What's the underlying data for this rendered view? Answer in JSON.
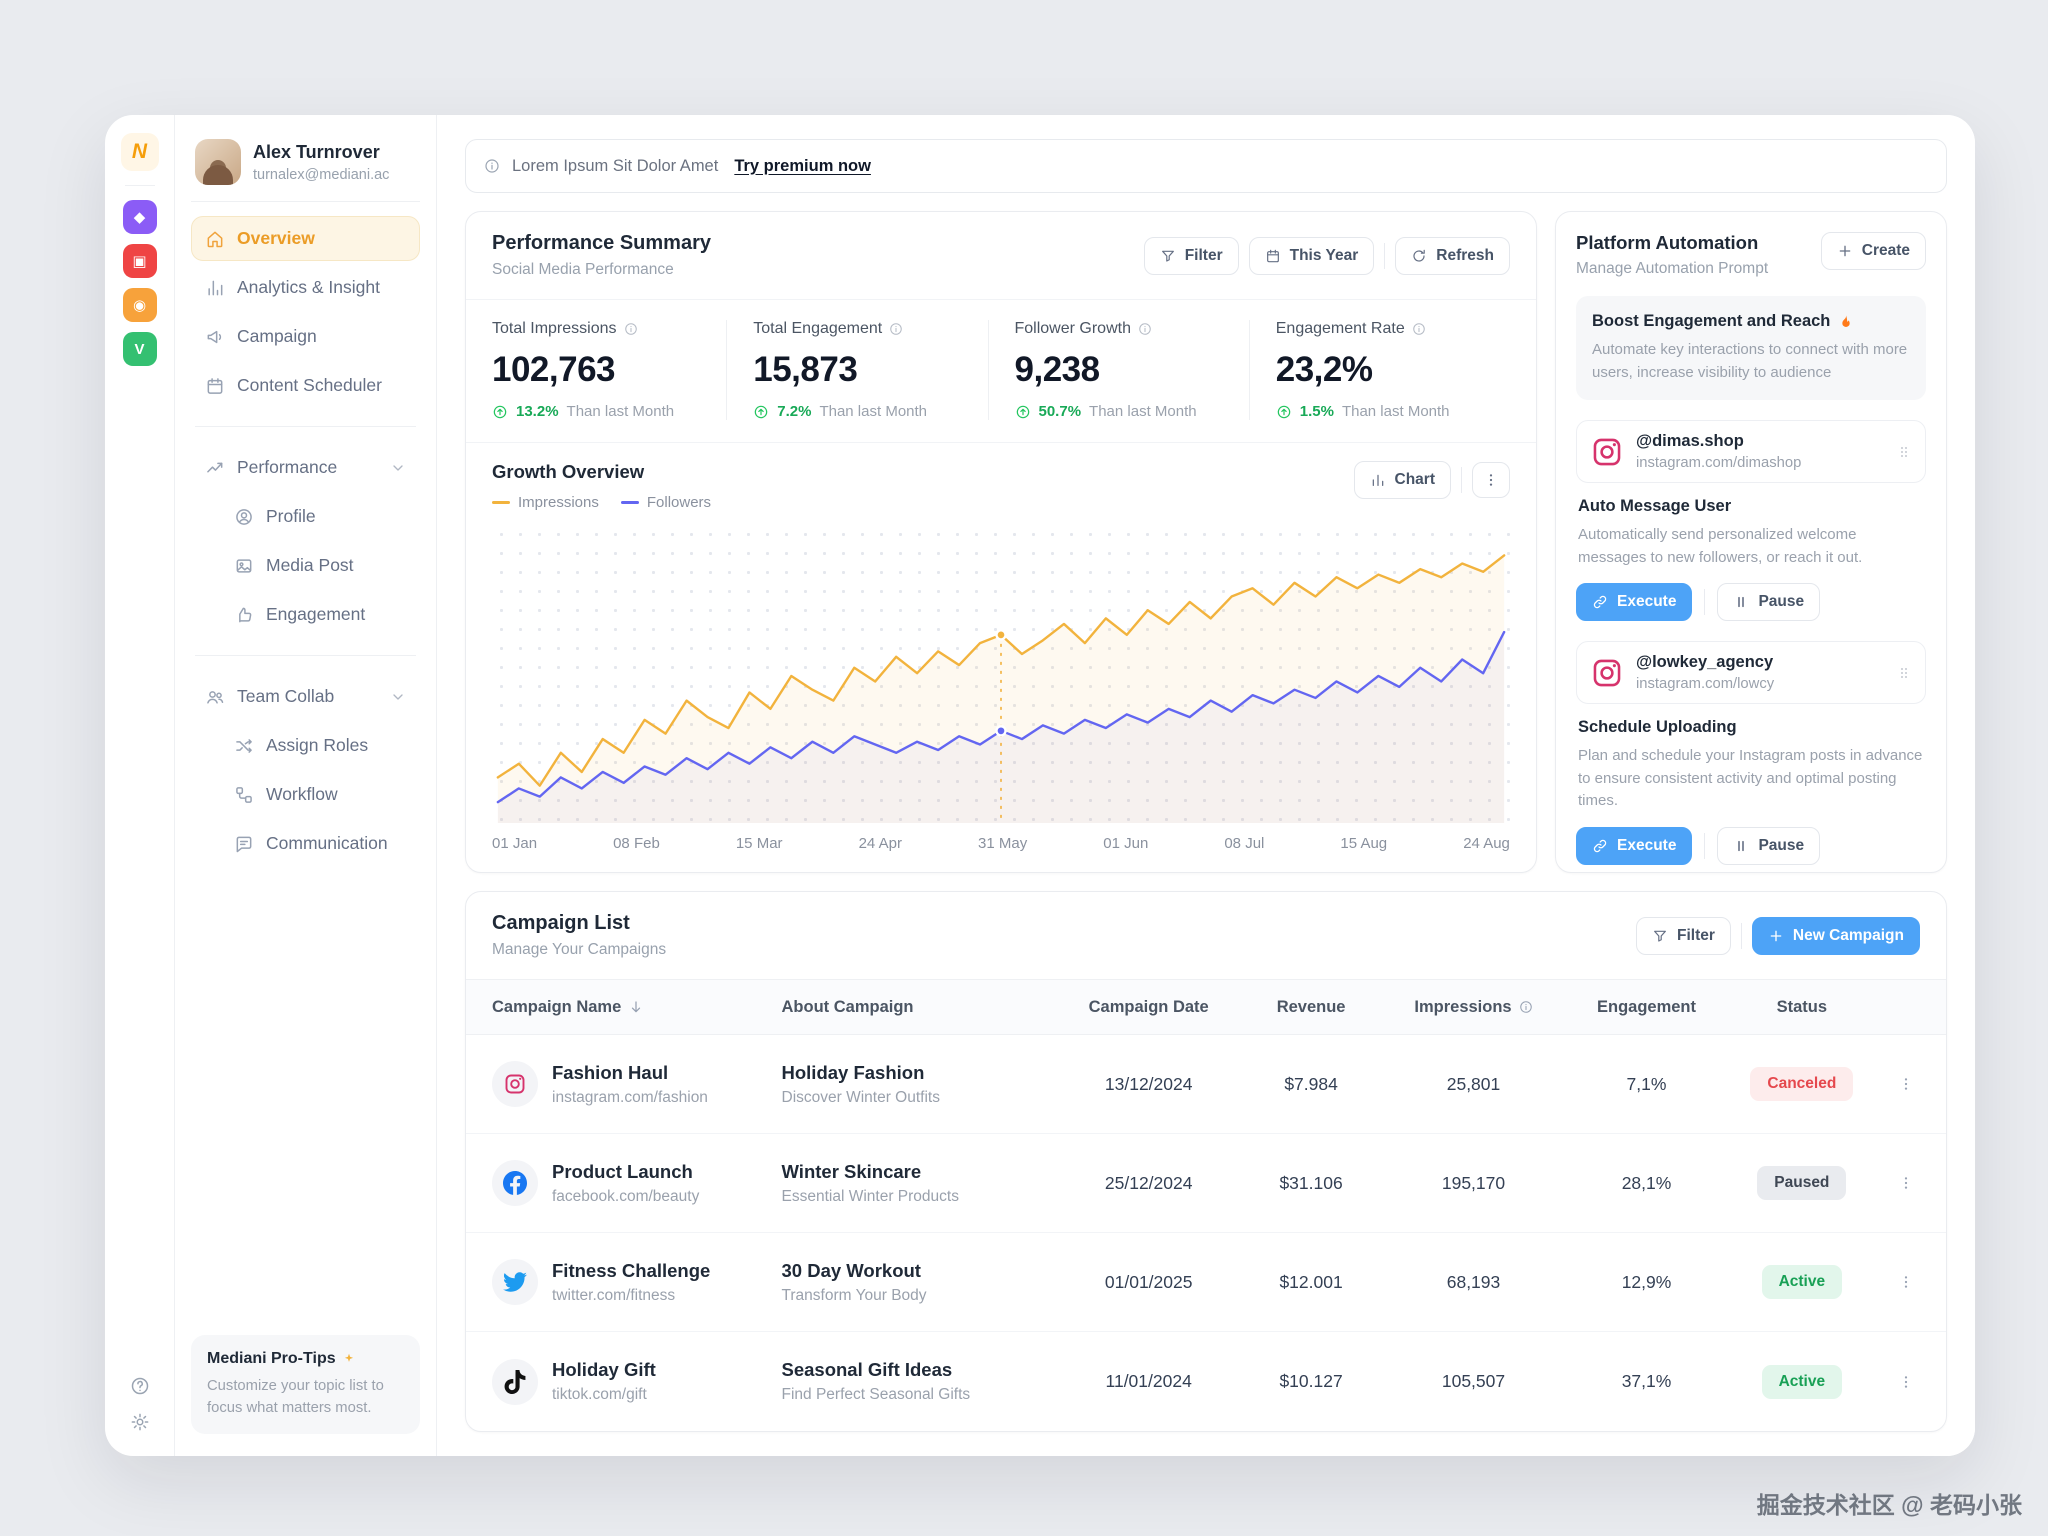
{
  "watermark": "掘金技术社区 @ 老码小张",
  "colors": {
    "accent_blue": "#4da3f7",
    "active_orange": "#eb9c26",
    "positive_green": "#18a957",
    "impressions_line": "#f2b33d",
    "followers_line": "#6366f1",
    "status_canceled": "#e5484d",
    "status_paused": "#3f4754",
    "status_active": "#18a055"
  },
  "rail": {
    "logo_letter": "N",
    "apps": [
      {
        "name": "app-purple",
        "glyph": "◆",
        "color": "#8b5cf6"
      },
      {
        "name": "app-red",
        "glyph": "▣",
        "color": "#ef4444"
      },
      {
        "name": "app-orange",
        "glyph": "◉",
        "color": "#f7a23b"
      },
      {
        "name": "app-green",
        "glyph": "V",
        "color": "#34c071"
      }
    ]
  },
  "sidebar": {
    "user": {
      "name": "Alex Turnrover",
      "email": "turnalex@mediani.ac"
    },
    "nav": [
      {
        "label": "Overview"
      },
      {
        "label": "Analytics & Insight"
      },
      {
        "label": "Campaign"
      },
      {
        "label": "Content Scheduler"
      }
    ],
    "sections": [
      {
        "label": "Performance",
        "items": [
          {
            "label": "Profile"
          },
          {
            "label": "Media Post"
          },
          {
            "label": "Engagement"
          }
        ]
      },
      {
        "label": "Team Collab",
        "items": [
          {
            "label": "Assign Roles"
          },
          {
            "label": "Workflow"
          },
          {
            "label": "Communication"
          }
        ]
      }
    ],
    "protips": {
      "title": "Mediani Pro-Tips",
      "body": "Customize your topic list to focus what matters most."
    }
  },
  "banner": {
    "text": "Lorem Ipsum Sit Dolor Amet",
    "link": "Try premium now"
  },
  "performance": {
    "title": "Performance Summary",
    "subtitle": "Social Media Performance",
    "filter_label": "Filter",
    "year_label": "This Year",
    "refresh_label": "Refresh",
    "stats": [
      {
        "label": "Total Impressions",
        "value": "102,763",
        "delta": "13.2%",
        "suffix": "Than last Month"
      },
      {
        "label": "Total Engagement",
        "value": "15,873",
        "delta": "7.2%",
        "suffix": "Than last Month"
      },
      {
        "label": "Follower Growth",
        "value": "9,238",
        "delta": "50.7%",
        "suffix": "Than last Month"
      },
      {
        "label": "Engagement Rate",
        "value": "23,2%",
        "delta": "1.5%",
        "suffix": "Than last Month"
      }
    ]
  },
  "growth": {
    "title": "Growth Overview",
    "chart_label": "Chart",
    "legend": [
      {
        "label": "Impressions",
        "color": "#f2b33d"
      },
      {
        "label": "Followers",
        "color": "#6366f1"
      }
    ]
  },
  "chart_data": {
    "type": "line",
    "title": "Growth Overview",
    "x_labels": [
      "01 Jan",
      "08 Feb",
      "15 Mar",
      "24 Apr",
      "31 May",
      "01 Jun",
      "08 Jul",
      "15 Aug",
      "24 Aug"
    ],
    "ylim": [
      0,
      100
    ],
    "grid": "dotted",
    "legend_position": "top-left",
    "marker_index": 24,
    "series": [
      {
        "name": "Impressions",
        "color": "#f2b33d",
        "values": [
          13,
          18,
          10,
          22,
          15,
          27,
          22,
          34,
          29,
          41,
          35,
          31,
          44,
          38,
          50,
          45,
          41,
          53,
          48,
          57,
          51,
          59,
          54,
          62,
          65,
          58,
          63,
          69,
          62,
          71,
          65,
          74,
          69,
          77,
          71,
          79,
          82,
          76,
          84,
          79,
          86,
          82,
          87,
          84,
          89,
          86,
          91,
          88,
          94
        ]
      },
      {
        "name": "Followers",
        "color": "#6366f1",
        "values": [
          4,
          9,
          6,
          13,
          9,
          15,
          11,
          17,
          14,
          20,
          16,
          22,
          18,
          24,
          20,
          26,
          22,
          28,
          25,
          22,
          26,
          23,
          28,
          25,
          30,
          27,
          32,
          29,
          34,
          31,
          36,
          33,
          38,
          35,
          41,
          37,
          43,
          40,
          45,
          42,
          48,
          44,
          50,
          46,
          53,
          48,
          56,
          51,
          66
        ]
      }
    ]
  },
  "automation": {
    "title": "Platform Automation",
    "subtitle": "Manage Automation Prompt",
    "create_label": "Create",
    "execute_label": "Execute",
    "pause_label": "Pause",
    "highlight": {
      "title": "Boost Engagement and Reach",
      "body": "Automate key interactions to connect with more users, increase visibility to audience"
    },
    "items": [
      {
        "handle": "@dimas.shop",
        "url": "instagram.com/dimashop",
        "task_title": "Auto Message User",
        "task_body": "Automatically send personalized welcome messages to new followers, or reach it out."
      },
      {
        "handle": "@lowkey_agency",
        "url": "instagram.com/lowcy",
        "task_title": "Schedule Uploading",
        "task_body": "Plan and schedule your Instagram posts in advance to ensure consistent activity and optimal posting times."
      }
    ]
  },
  "campaigns": {
    "title": "Campaign List",
    "subtitle": "Manage Your Campaigns",
    "filter_label": "Filter",
    "new_label": "New Campaign",
    "columns": [
      "Campaign Name",
      "About Campaign",
      "Campaign Date",
      "Revenue",
      "Impressions",
      "Engagement",
      "Status"
    ],
    "rows": [
      {
        "platform": "instagram",
        "name": "Fashion Haul",
        "url": "instagram.com/fashion",
        "about_title": "Holiday Fashion",
        "about_sub": "Discover Winter Outfits",
        "date": "13/12/2024",
        "revenue": "$7.984",
        "impressions": "25,801",
        "engagement": "7,1%",
        "status": "Canceled"
      },
      {
        "platform": "facebook",
        "name": "Product Launch",
        "url": "facebook.com/beauty",
        "about_title": "Winter Skincare",
        "about_sub": "Essential Winter Products",
        "date": "25/12/2024",
        "revenue": "$31.106",
        "impressions": "195,170",
        "engagement": "28,1%",
        "status": "Paused"
      },
      {
        "platform": "twitter",
        "name": "Fitness Challenge",
        "url": "twitter.com/fitness",
        "about_title": "30 Day Workout",
        "about_sub": "Transform Your Body",
        "date": "01/01/2025",
        "revenue": "$12.001",
        "impressions": "68,193",
        "engagement": "12,9%",
        "status": "Active"
      },
      {
        "platform": "tiktok",
        "name": "Holiday Gift",
        "url": "tiktok.com/gift",
        "about_title": "Seasonal Gift Ideas",
        "about_sub": "Find Perfect Seasonal Gifts",
        "date": "11/01/2024",
        "revenue": "$10.127",
        "impressions": "105,507",
        "engagement": "37,1%",
        "status": "Active"
      }
    ]
  }
}
